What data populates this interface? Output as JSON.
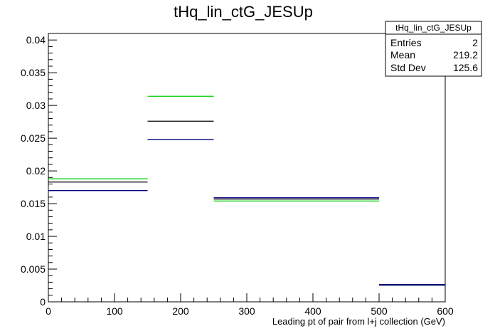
{
  "chart_data": {
    "type": "histogram",
    "title": "tHq_lin_ctG_JESUp",
    "xlabel": "Leading pt of pair from l+j collection (GeV)",
    "ylabel": "",
    "xlim": [
      0,
      600
    ],
    "ylim": [
      0,
      0.041
    ],
    "x_ticks": [
      "0",
      "100",
      "200",
      "300",
      "400",
      "500",
      "600"
    ],
    "y_ticks": [
      "0",
      "0.005",
      "0.01",
      "0.015",
      "0.02",
      "0.025",
      "0.03",
      "0.035",
      "0.04"
    ],
    "bin_edges": [
      0,
      150,
      250,
      500,
      600
    ],
    "series": [
      {
        "color": "#00cc00",
        "values": [
          0.0188,
          0.0314,
          0.0154,
          0.0026
        ]
      },
      {
        "color": "#000000",
        "values": [
          0.0183,
          0.0276,
          0.0157,
          0.0026
        ]
      },
      {
        "color": "#000080",
        "values": [
          0.017,
          0.0248,
          0.0159,
          0.0026
        ]
      }
    ],
    "stats_box": {
      "title": "tHq_lin_ctG_JESUp",
      "rows": [
        {
          "label": "Entries",
          "value": "2"
        },
        {
          "label": "Mean",
          "value": "219.2"
        },
        {
          "label": "Std Dev",
          "value": "125.6"
        }
      ]
    },
    "grid": false
  }
}
